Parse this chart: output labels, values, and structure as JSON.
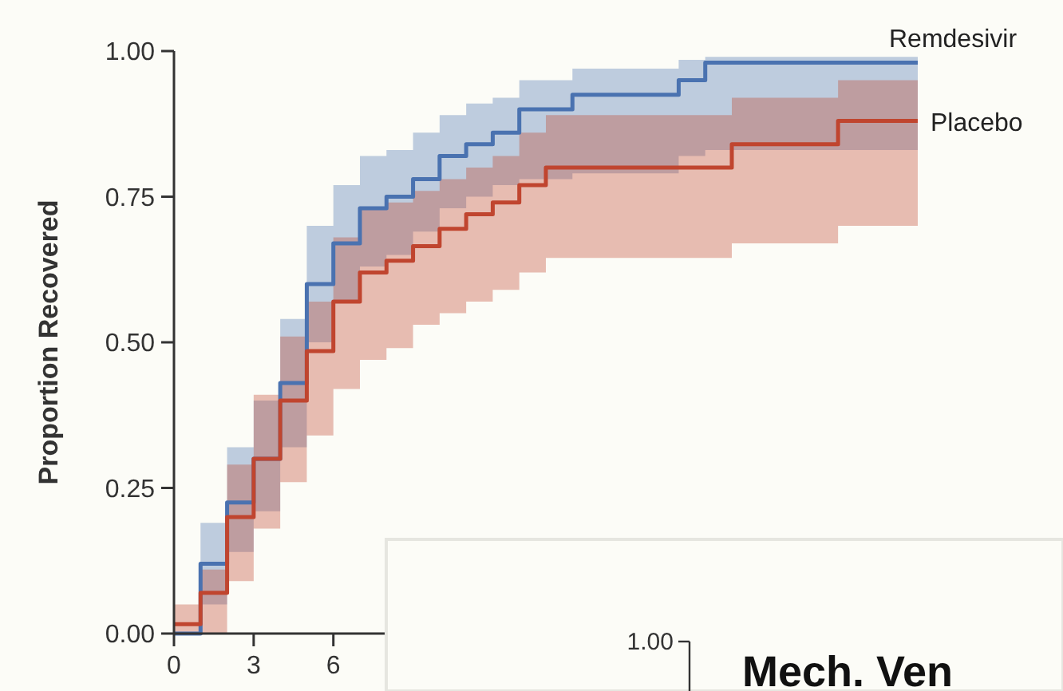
{
  "chart_data": {
    "type": "step",
    "ylabel": "Proportion Recovered",
    "xlim": [
      0,
      28
    ],
    "xticks": [
      0,
      3,
      6
    ],
    "ylim": [
      0,
      1
    ],
    "yticks": [
      {
        "value": 0,
        "label": "0.00"
      },
      {
        "value": 0.25,
        "label": "0.25"
      },
      {
        "value": 0.5,
        "label": "0.50"
      },
      {
        "value": 0.75,
        "label": "0.75"
      },
      {
        "value": 1,
        "label": "1.00"
      }
    ],
    "grid": false,
    "marker": "none",
    "line_style": "solid",
    "annotations": [
      "1.00",
      "Mech. Ven"
    ],
    "series": [
      {
        "name": "Remdesivir",
        "color": "#4a72b0",
        "x": [
          0,
          1,
          2,
          3,
          4,
          5,
          6,
          7,
          8,
          9,
          10,
          11,
          12,
          13,
          15,
          19,
          20,
          28
        ],
        "values": [
          0,
          0.12,
          0.225,
          0.3,
          0.43,
          0.6,
          0.67,
          0.73,
          0.75,
          0.78,
          0.82,
          0.84,
          0.86,
          0.9,
          0.925,
          0.95,
          0.98,
          0.98
        ],
        "lower": [
          0,
          0.05,
          0.14,
          0.21,
          0.32,
          0.5,
          0.57,
          0.63,
          0.65,
          0.69,
          0.73,
          0.75,
          0.77,
          0.78,
          0.79,
          0.82,
          0.83,
          0.83
        ],
        "upper": [
          0,
          0.19,
          0.32,
          0.4,
          0.54,
          0.7,
          0.77,
          0.82,
          0.83,
          0.86,
          0.89,
          0.91,
          0.92,
          0.95,
          0.97,
          0.985,
          0.99,
          0.99
        ]
      },
      {
        "name": "Placebo",
        "color": "#c0452f",
        "x": [
          0,
          1,
          2,
          3,
          4,
          5,
          6,
          7,
          8,
          9,
          10,
          11,
          12,
          13,
          14,
          21,
          25,
          28
        ],
        "values": [
          0.016,
          0.07,
          0.2,
          0.3,
          0.4,
          0.485,
          0.57,
          0.62,
          0.64,
          0.665,
          0.695,
          0.72,
          0.74,
          0.77,
          0.8,
          0.84,
          0.88,
          0.88
        ],
        "lower": [
          0,
          0,
          0.09,
          0.18,
          0.26,
          0.34,
          0.42,
          0.47,
          0.49,
          0.53,
          0.55,
          0.57,
          0.59,
          0.62,
          0.645,
          0.67,
          0.7,
          0.7
        ],
        "upper": [
          0.05,
          0.11,
          0.29,
          0.41,
          0.51,
          0.57,
          0.68,
          0.73,
          0.74,
          0.76,
          0.78,
          0.8,
          0.82,
          0.86,
          0.89,
          0.92,
          0.95,
          0.95
        ]
      }
    ]
  }
}
